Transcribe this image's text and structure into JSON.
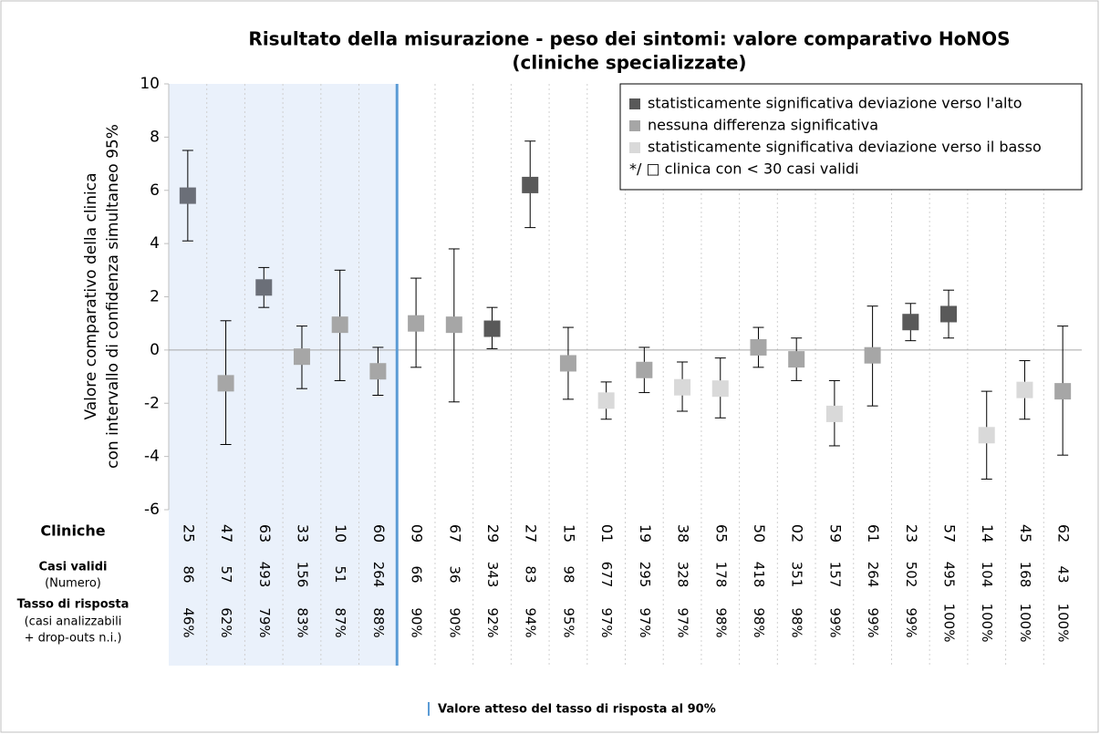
{
  "chart_data": {
    "type": "errorbar",
    "title": [
      "Risultato della misurazione - peso dei sintomi: valore comparativo HoNOS",
      "(cliniche specializzate)"
    ],
    "y_label": [
      "Valore comparativo della clinica",
      "con intervallo di confidenza simultaneo 95%"
    ],
    "categories_label": "Cliniche",
    "categories": [
      "25",
      "47",
      "63",
      "33",
      "10",
      "60",
      "09",
      "67",
      "29",
      "27",
      "15",
      "01",
      "19",
      "38",
      "65",
      "50",
      "02",
      "59",
      "61",
      "23",
      "57",
      "14",
      "45",
      "62"
    ],
    "cases_label": [
      "Casi validi",
      "(Numero)"
    ],
    "cases": [
      86,
      57,
      493,
      156,
      51,
      264,
      66,
      36,
      343,
      83,
      98,
      677,
      295,
      328,
      178,
      418,
      351,
      157,
      264,
      502,
      495,
      104,
      168,
      43
    ],
    "rate_label": [
      "Tasso di risposta",
      "(casi analizzabili",
      "+ drop-outs n.i.)"
    ],
    "rates": [
      46,
      62,
      79,
      83,
      87,
      88,
      90,
      90,
      92,
      94,
      95,
      97,
      97,
      97,
      98,
      98,
      98,
      99,
      99,
      99,
      100,
      100,
      100,
      100
    ],
    "rates_value_labels": [
      "46%",
      "62%",
      "79%",
      "83%",
      "87%",
      "88%",
      "90%",
      "90%",
      "92%",
      "94%",
      "95%",
      "97%",
      "97%",
      "97%",
      "98%",
      "98%",
      "98%",
      "99%",
      "99%",
      "99%",
      "100%",
      "100%",
      "100%",
      "100%"
    ],
    "reference_rate": 90,
    "reference_note": "Valore atteso del tasso di risposta al 90%",
    "series": [
      {
        "values": [
          5.8,
          -1.25,
          2.35,
          -0.25,
          0.95,
          -0.8,
          1.0,
          0.95,
          0.8,
          6.2,
          -0.5,
          -1.9,
          -0.75,
          -1.4,
          -1.45,
          0.1,
          -0.35,
          -2.4,
          -0.2,
          1.05,
          1.35,
          -3.2,
          -1.5,
          -1.55
        ],
        "lower": [
          4.1,
          -3.55,
          1.6,
          -1.45,
          -1.15,
          -1.7,
          -0.65,
          -1.95,
          0.05,
          4.6,
          -1.85,
          -2.6,
          -1.6,
          -2.3,
          -2.55,
          -0.65,
          -1.15,
          -3.6,
          -2.1,
          0.35,
          0.45,
          -4.85,
          -2.6,
          -3.95
        ],
        "upper": [
          7.5,
          1.1,
          3.1,
          0.9,
          3.0,
          0.1,
          2.7,
          3.8,
          1.6,
          7.85,
          0.85,
          -1.2,
          0.1,
          -0.45,
          -0.3,
          0.85,
          0.45,
          -1.15,
          1.65,
          1.75,
          2.25,
          -1.55,
          -0.4,
          0.9
        ],
        "colors": [
          "#6b6f78",
          "#a6a6a6",
          "#6b6f78",
          "#a6a6a6",
          "#a6a6a6",
          "#a6a6a6",
          "#a6a6a6",
          "#a6a6a6",
          "#595959",
          "#595959",
          "#a6a6a6",
          "#d9d9d9",
          "#a6a6a6",
          "#d9d9d9",
          "#d9d9d9",
          "#a6a6a6",
          "#a6a6a6",
          "#d9d9d9",
          "#a6a6a6",
          "#595959",
          "#595959",
          "#d9d9d9",
          "#d9d9d9",
          "#a6a6a6"
        ]
      }
    ],
    "legend": [
      {
        "label": "statisticamente significativa deviazione verso l'alto",
        "color": "#595959"
      },
      {
        "label": "nessuna differenza significativa",
        "color": "#a6a6a6"
      },
      {
        "label": "statisticamente significativa deviazione verso il basso",
        "color": "#d9d9d9"
      },
      {
        "label": "*/ □ clinica con < 30 casi validi",
        "color": null
      }
    ],
    "ylim": [
      -6,
      10
    ],
    "yticks": [
      -6,
      -4,
      -2,
      0,
      2,
      4,
      6,
      8,
      10
    ]
  }
}
